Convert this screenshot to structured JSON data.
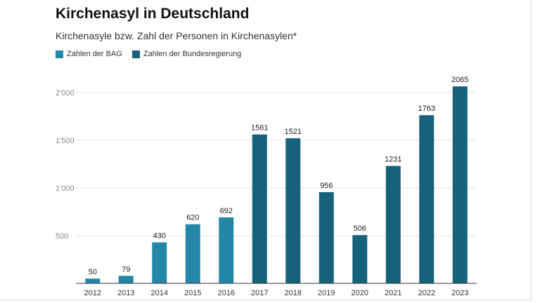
{
  "chart_data": {
    "type": "bar",
    "title": "Kirchenasyl in Deutschland",
    "subtitle": "Kirchenasyle bzw. Zahl der Personen in Kirchenasylen*",
    "categories": [
      "2012",
      "2013",
      "2014",
      "2015",
      "2016",
      "2017",
      "2018",
      "2019",
      "2020",
      "2021",
      "2022",
      "2023"
    ],
    "values": [
      50,
      79,
      430,
      620,
      692,
      1561,
      1521,
      956,
      506,
      1231,
      1763,
      2065
    ],
    "value_labels": [
      "50",
      "79",
      "430",
      "620",
      "692",
      "1561",
      "1521",
      "956",
      "506",
      "1231",
      "1763",
      "2065"
    ],
    "series_assignment": [
      0,
      0,
      0,
      0,
      0,
      1,
      1,
      1,
      1,
      1,
      1,
      1
    ],
    "series": [
      {
        "name": "Zahlen der BAG",
        "color": "#2587a8"
      },
      {
        "name": "Zahlen der Bundesregierung",
        "color": "#16627a"
      }
    ],
    "yticks": [
      500,
      1000,
      1500,
      2000
    ],
    "ytick_labels": [
      "500",
      "1'000",
      "1'500",
      "2'000"
    ],
    "ylim": [
      0,
      2100
    ],
    "xlabel": "",
    "ylabel": "",
    "grid": true,
    "legend_position": "top-left"
  }
}
